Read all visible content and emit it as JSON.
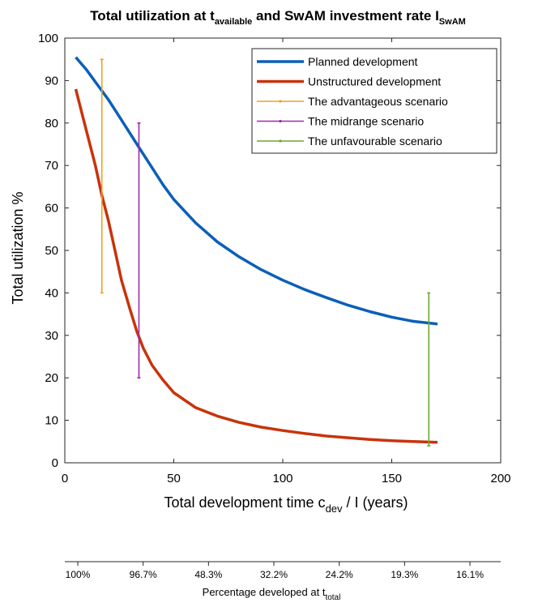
{
  "chart_data": {
    "type": "line",
    "title": {
      "part1": "Total utilization at t",
      "sub1": "available",
      "part2": " and SwAM investment rate I",
      "sub2": "SwAM"
    },
    "xlabel": {
      "part1": "Total development time c",
      "sub1": "dev",
      "part2": " / I (years)"
    },
    "ylabel": "Total utilization %",
    "xlim": [
      0,
      200
    ],
    "ylim": [
      0,
      100
    ],
    "xticks": [
      0,
      50,
      100,
      150,
      200
    ],
    "yticks": [
      0,
      10,
      20,
      30,
      40,
      50,
      60,
      70,
      80,
      90,
      100
    ],
    "grid": false,
    "legend_position": "top-right",
    "series": [
      {
        "name": "Planned development",
        "color": "#0b5fb8",
        "style": "line",
        "x": [
          5,
          10,
          15,
          20,
          25,
          30,
          35,
          40,
          45,
          50,
          60,
          70,
          80,
          90,
          100,
          110,
          120,
          130,
          140,
          150,
          160,
          171
        ],
        "y": [
          95.5,
          92.5,
          89,
          85.5,
          81.5,
          77.5,
          73.5,
          69.5,
          65.5,
          62,
          56.5,
          52,
          48.5,
          45.5,
          43,
          40.8,
          38.9,
          37.1,
          35.6,
          34.3,
          33.3,
          32.7
        ]
      },
      {
        "name": "Unstructured development",
        "color": "#c8330b",
        "style": "line",
        "x": [
          5,
          8,
          11,
          14,
          17,
          20,
          23,
          26,
          30,
          33,
          36,
          40,
          45,
          50,
          60,
          70,
          80,
          90,
          100,
          110,
          120,
          130,
          140,
          150,
          160,
          171
        ],
        "y": [
          88,
          82,
          76,
          70,
          63,
          57,
          50,
          43,
          36,
          31,
          27,
          23,
          19.5,
          16.5,
          13,
          11,
          9.5,
          8.4,
          7.6,
          6.9,
          6.3,
          5.9,
          5.5,
          5.2,
          5.0,
          4.8
        ]
      },
      {
        "name": "The advantageous scenario",
        "color": "#f0a020",
        "style": "errorbar",
        "x": [
          17,
          17
        ],
        "y": [
          40,
          95
        ]
      },
      {
        "name": "The midrange scenario",
        "color": "#9c2da8",
        "style": "errorbar",
        "x": [
          34,
          34
        ],
        "y": [
          20,
          80
        ]
      },
      {
        "name": "The unfavourable scenario",
        "color": "#6ea832",
        "style": "errorbar",
        "x": [
          167,
          167
        ],
        "y": [
          4,
          40
        ]
      }
    ],
    "secondary_axis": {
      "label": {
        "part1": "Percentage developed at t",
        "sub1": "total"
      },
      "ticks": [
        "100%",
        "96.7%",
        "48.3%",
        "32.2%",
        "24.2%",
        "19.3%",
        "16.1%"
      ]
    }
  }
}
